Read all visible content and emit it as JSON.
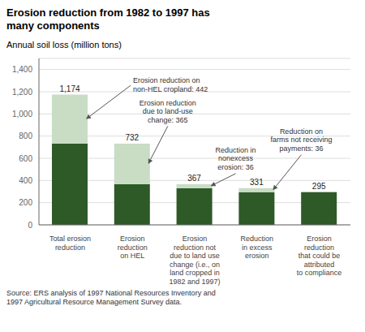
{
  "chart_data": {
    "type": "bar",
    "stacked": true,
    "title": "Erosion reduction from 1982 to 1997 has\nmany components",
    "ylabel": "Annual soil loss (million tons)",
    "source": "Source: ERS analysis of 1997 National Resources Inventory and\n1997 Agricultural Resource Management Survey data.",
    "categories": [
      "Total erosion\nreduction",
      "Erosion\nreduction\non HEL",
      "Erosion\nreduction not\ndue to land use\nchange (i.e., on\nland cropped in\n1982 and 1997)",
      "Reduction\nin excess\nerosion",
      "Erosion\nreduction\nthat could be\nattributed\nto compliance"
    ],
    "series": [
      {
        "color": "#2d5a27",
        "values": [
          732,
          367,
          331,
          295,
          295
        ]
      },
      {
        "color": "#c8ddc4",
        "values": [
          442,
          365,
          36,
          36,
          0
        ]
      }
    ],
    "totals": [
      1174,
      732,
      367,
      331,
      295
    ],
    "total_labels": [
      "1,174",
      "732",
      "367",
      "331",
      "295"
    ],
    "ylim": [
      0,
      1500
    ],
    "yticks": [
      0,
      200,
      400,
      600,
      800,
      {
        "value": 1000,
        "label": "1,000"
      },
      {
        "value": 1200,
        "label": "1,200"
      },
      {
        "value": 1400,
        "label": "1,400"
      }
    ],
    "grid": true,
    "annotations": [
      {
        "text": "Erosion reduction on\nnon-HEL cropland: 442"
      },
      {
        "text": "Erosion reduction\ndue to land-use\nchange: 365"
      },
      {
        "text": "Reduction in\nnonexcess\nerosion: 36"
      },
      {
        "text": "Reduction on\nfarms not receiving\npayments: 36"
      }
    ]
  }
}
